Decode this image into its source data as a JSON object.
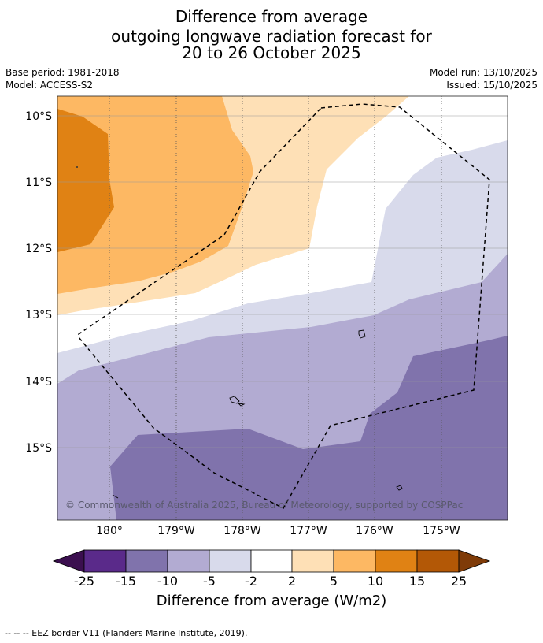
{
  "title": {
    "line1": "Difference from average",
    "line2": "outgoing longwave radiation forecast for",
    "line3": "20 to 26 October 2025"
  },
  "meta": {
    "base_period": "Base period: 1981-2018",
    "model": "Model: ACCESS-S2",
    "model_run": "Model run: 13/10/2025",
    "issued": "Issued: 15/10/2025"
  },
  "map": {
    "lat_ticks": [
      "10°S",
      "11°S",
      "12°S",
      "13°S",
      "14°S",
      "15°S"
    ],
    "lon_ticks": [
      "180°",
      "179°W",
      "178°W",
      "177°W",
      "176°W",
      "175°W"
    ],
    "copyright": "© Commonwealth of Australia 2025, Bureau of Meteorology, supported by COSPPac"
  },
  "colorbar": {
    "labels": [
      "-25",
      "-15",
      "-10",
      "-5",
      "-2",
      "2",
      "5",
      "10",
      "15",
      "25"
    ],
    "colors": {
      "below_min": "#3b0f4f",
      "c_neg25_neg15": "#5a2a8a",
      "c_neg15_neg10": "#8073ac",
      "c_neg10_neg5": "#b2abd2",
      "c_neg5_neg2": "#d8daeb",
      "c_neg2_2": "#ffffff",
      "c_2_5": "#fee0b6",
      "c_5_10": "#fdb863",
      "c_10_15": "#e08214",
      "c_15_25": "#b35806",
      "above_max": "#7f3b08"
    },
    "title": "Difference from average (W/m2)"
  },
  "footer": "--  --  -- EEZ border V11 (Flanders Marine Institute, 2019)."
}
